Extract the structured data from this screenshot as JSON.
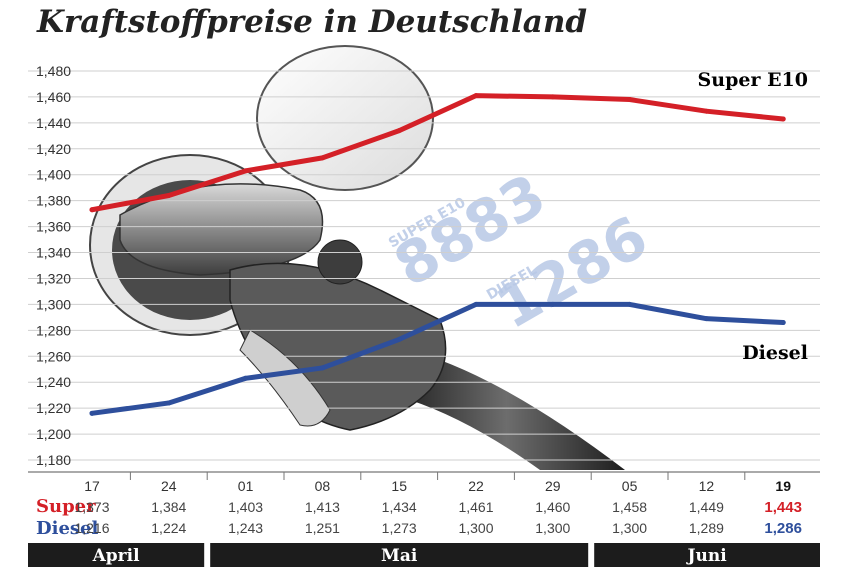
{
  "title": "Kraftstoffpreise in Deutschland",
  "colors": {
    "super": "#d42027",
    "diesel": "#2e4f9c",
    "month_bar": "#1c1c1c",
    "grid": "#cfcfcf"
  },
  "pump_display": {
    "super_label": "SUPER E10",
    "super_digits": "8883",
    "diesel_label": "DIESEL",
    "diesel_digits": "1286"
  },
  "chart_data": {
    "type": "line",
    "title": "Kraftstoffpreise in Deutschland",
    "x": [
      "17",
      "24",
      "01",
      "08",
      "15",
      "22",
      "29",
      "05",
      "12",
      "19"
    ],
    "months": [
      {
        "name": "April",
        "from": 0,
        "to": 1
      },
      {
        "name": "Mai",
        "from": 2,
        "to": 6
      },
      {
        "name": "Juni",
        "from": 7,
        "to": 9
      }
    ],
    "yticks": [
      "1,480",
      "1,460",
      "1,440",
      "1,420",
      "1,400",
      "1,380",
      "1,360",
      "1,340",
      "1,320",
      "1,300",
      "1,280",
      "1,260",
      "1,240",
      "1,220",
      "1,200",
      "1,180"
    ],
    "ylim": [
      1.18,
      1.48
    ],
    "grid": true,
    "series": [
      {
        "name": "Super E10",
        "row_label": "Super",
        "color": "#d42027",
        "values": [
          1.373,
          1.384,
          1.403,
          1.413,
          1.434,
          1.461,
          1.46,
          1.458,
          1.449,
          1.443
        ],
        "labels": [
          "1,373",
          "1,384",
          "1,403",
          "1,413",
          "1,434",
          "1,461",
          "1,460",
          "1,458",
          "1,449",
          "1,443"
        ]
      },
      {
        "name": "Diesel",
        "row_label": "Diesel",
        "color": "#2e4f9c",
        "values": [
          1.216,
          1.224,
          1.243,
          1.251,
          1.273,
          1.3,
          1.3,
          1.3,
          1.289,
          1.286
        ],
        "labels": [
          "1,216",
          "1,224",
          "1,243",
          "1,251",
          "1,273",
          "1,300",
          "1,300",
          "1,300",
          "1,289",
          "1,286"
        ]
      }
    ]
  }
}
